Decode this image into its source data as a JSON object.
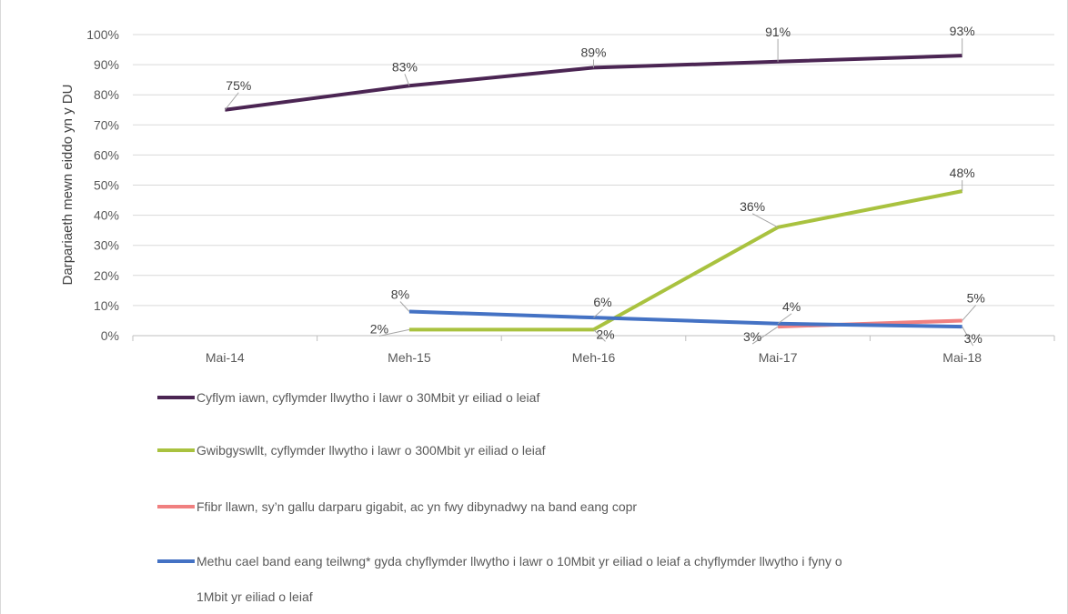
{
  "chart_data": {
    "type": "line",
    "categories": [
      "Mai-14",
      "Meh-15",
      "Meh-16",
      "Mai-17",
      "Mai-18"
    ],
    "ylabel": "Darpariaeth mewn eiddo yn y DU",
    "xlabel": "",
    "ylim": [
      0,
      100
    ],
    "yticks": [
      "0%",
      "10%",
      "20%",
      "30%",
      "40%",
      "50%",
      "60%",
      "70%",
      "80%",
      "90%",
      "100%"
    ],
    "grid": "horizontal",
    "legend_position": "bottom",
    "series": [
      {
        "name": "Cyflym iawn, cyflymder llwytho i lawr o 30Mbit yr eiliad o leiaf",
        "color": "#4b2553",
        "values": [
          75,
          83,
          89,
          91,
          93
        ],
        "labels": [
          "75%",
          "83%",
          "89%",
          "91%",
          "93%"
        ]
      },
      {
        "name": "Gwibgyswllt, cyflymder llwytho i lawr o 300Mbit yr eiliad o leiaf",
        "color": "#a9c23f",
        "values": [
          null,
          2,
          2,
          36,
          48
        ],
        "labels": [
          null,
          "2%",
          "2%",
          "36%",
          "48%"
        ]
      },
      {
        "name": "Ffibr llawn, sy’n gallu darparu gigabit, ac yn fwy dibynadwy na band eang copr",
        "color": "#f08080",
        "values": [
          null,
          null,
          null,
          3,
          5
        ],
        "labels": [
          null,
          null,
          null,
          "3%",
          "5%"
        ]
      },
      {
        "name": "Methu cael band eang teilwng* gyda chyflymder llwytho i lawr o 10Mbit yr eiliad o leiaf a chyflymder llwytho i fyny o 1Mbit yr eiliad o leiaf",
        "color": "#4472c4",
        "values": [
          null,
          8,
          6,
          4,
          3
        ],
        "labels": [
          null,
          "8%",
          "6%",
          "4%",
          "3%"
        ]
      }
    ]
  }
}
